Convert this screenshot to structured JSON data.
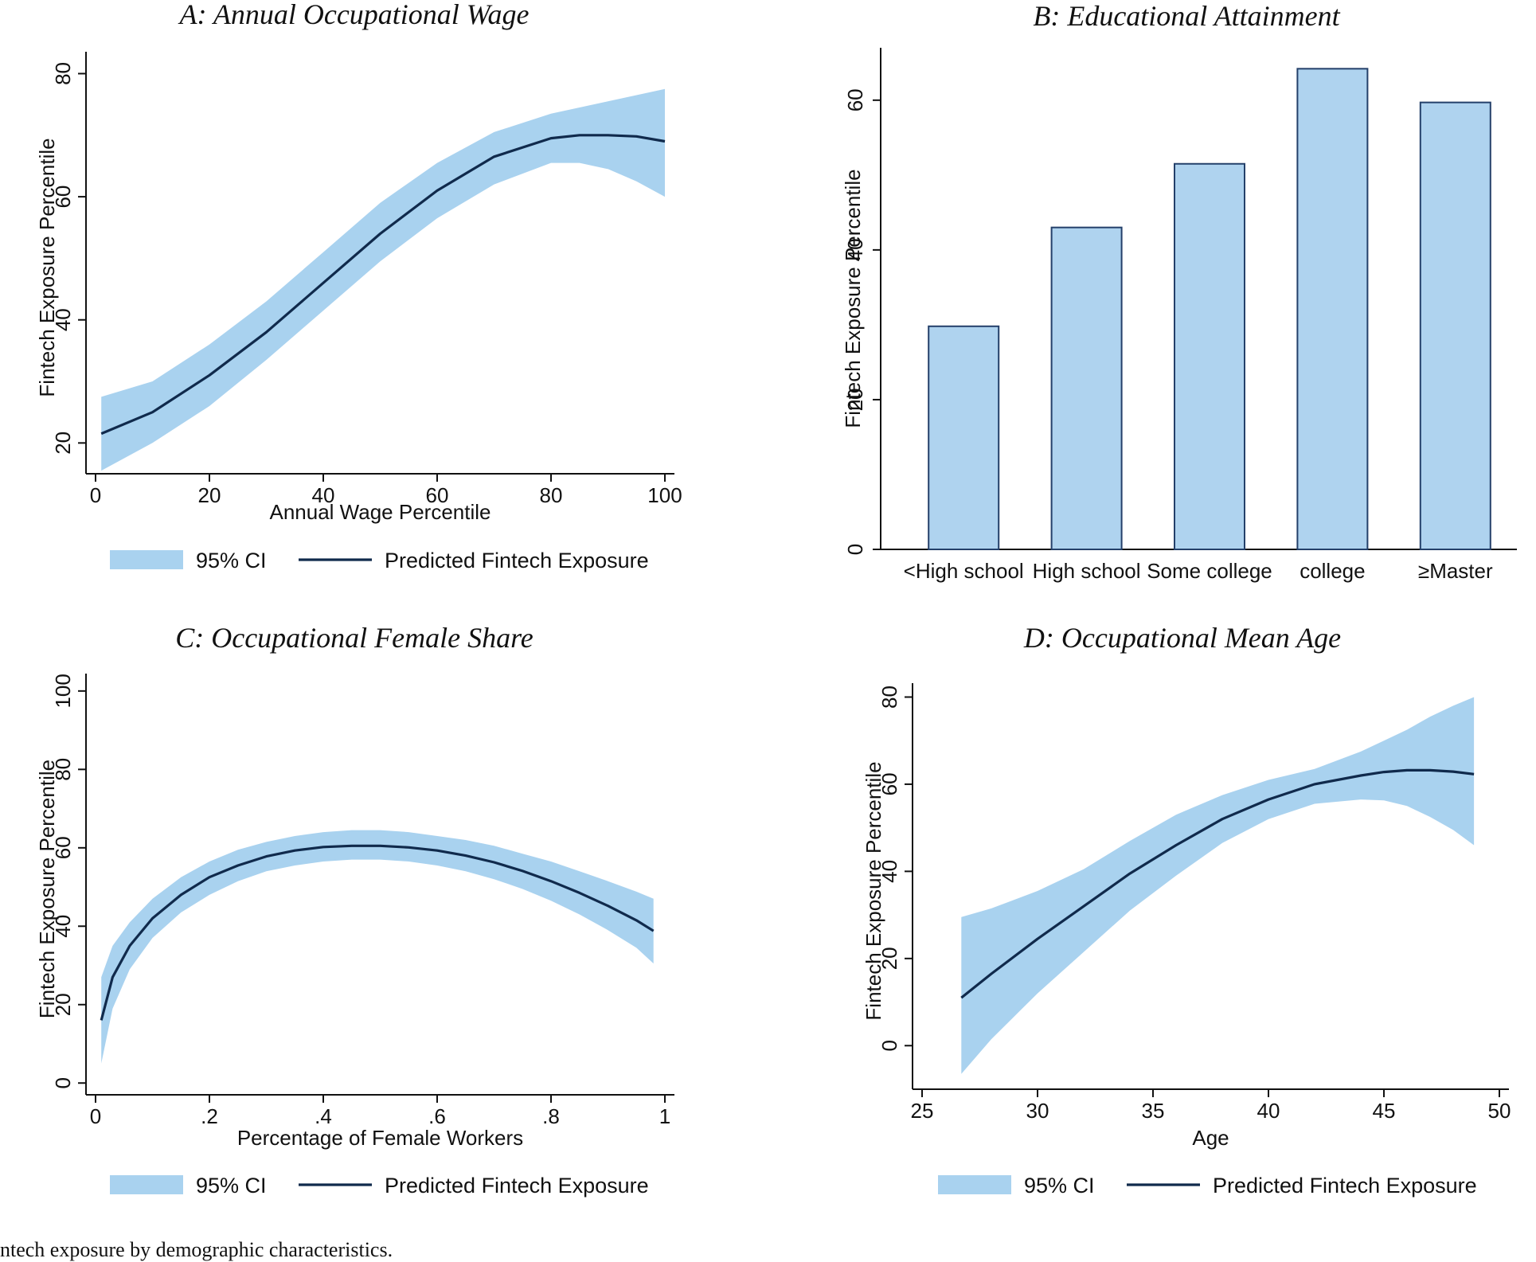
{
  "colors": {
    "ci_fill": "#A9D2EF",
    "line": "#102A4C",
    "bar_fill": "#AFD3EF",
    "bar_stroke": "#24406A",
    "axis": "#111111"
  },
  "caption": "ntech exposure by demographic characteristics.",
  "chart_data": [
    {
      "type": "line",
      "title": "A: Annual Occupational Wage",
      "xlabel": "Annual Wage Percentile",
      "ylabel": "Fintech Exposure Percentile",
      "xlim": [
        0,
        100
      ],
      "ylim": [
        15,
        82
      ],
      "xticks": [
        0,
        20,
        40,
        60,
        80,
        100
      ],
      "yticks": [
        20,
        40,
        60,
        80
      ],
      "legend": [
        "95% CI",
        "Predicted Fintech Exposure"
      ],
      "legend_position": "bottom",
      "x": [
        1,
        10,
        20,
        30,
        40,
        50,
        60,
        70,
        80,
        85,
        90,
        95,
        100
      ],
      "series": [
        {
          "name": "Predicted Fintech Exposure",
          "values": [
            21.5,
            25,
            31,
            38,
            46,
            54,
            61,
            66.5,
            69.5,
            70,
            70,
            69.8,
            69
          ]
        }
      ],
      "ci_lower": [
        15.5,
        20,
        26,
        33.5,
        41.5,
        49.5,
        56.5,
        62,
        65.5,
        65.5,
        64.5,
        62.5,
        60
      ],
      "ci_upper": [
        27.5,
        30,
        36,
        43,
        51,
        59,
        65.5,
        70.5,
        73.5,
        74.5,
        75.5,
        76.5,
        77.5
      ]
    },
    {
      "type": "bar",
      "title": "B: Educational Attainment",
      "ylabel": "Fintech Exposure Percentile",
      "ylim": [
        0,
        67
      ],
      "yticks": [
        0,
        20,
        40,
        60
      ],
      "categories": [
        "<High school",
        "High school",
        "Some college",
        "college",
        "≥Master"
      ],
      "values": [
        29.8,
        43,
        51.5,
        64.2,
        59.7
      ]
    },
    {
      "type": "line",
      "title": "C: Occupational Female Share",
      "xlabel": "Percentage of Female Workers",
      "ylabel": "Fintech Exposure Percentile",
      "xlim": [
        0,
        1
      ],
      "ylim": [
        -3,
        102
      ],
      "xticks": [
        0,
        0.2,
        0.4,
        0.6,
        0.8,
        1
      ],
      "xtick_labels": [
        "0",
        ".2",
        ".4",
        ".6",
        ".8",
        "1"
      ],
      "yticks": [
        0,
        20,
        40,
        60,
        80,
        100
      ],
      "legend": [
        "95% CI",
        "Predicted Fintech Exposure"
      ],
      "legend_position": "bottom",
      "x": [
        0.01,
        0.03,
        0.06,
        0.1,
        0.15,
        0.2,
        0.25,
        0.3,
        0.35,
        0.4,
        0.45,
        0.5,
        0.55,
        0.6,
        0.65,
        0.7,
        0.75,
        0.8,
        0.85,
        0.9,
        0.95,
        0.98
      ],
      "series": [
        {
          "name": "Predicted Fintech Exposure",
          "values": [
            16,
            27,
            35,
            42,
            48,
            52.5,
            55.5,
            57.8,
            59.3,
            60.2,
            60.5,
            60.5,
            60.1,
            59.3,
            58,
            56.3,
            54.1,
            51.5,
            48.5,
            45.2,
            41.5,
            38.8
          ]
        }
      ],
      "ci_lower": [
        5,
        19,
        29,
        37,
        43.5,
        48,
        51.5,
        54,
        55.5,
        56.5,
        57,
        57,
        56.5,
        55.5,
        54,
        52,
        49.5,
        46.5,
        43,
        39,
        34.5,
        30.5
      ],
      "ci_upper": [
        27,
        35,
        41,
        47,
        52.5,
        56.5,
        59.5,
        61.5,
        63,
        64,
        64.5,
        64.5,
        64,
        63,
        62,
        60.5,
        58.5,
        56.5,
        54,
        51.5,
        48.8,
        47
      ]
    },
    {
      "type": "line",
      "title": "D: Occupational Mean Age",
      "xlabel": "Age",
      "ylabel": "Fintech Exposure Percentile",
      "xlim": [
        25,
        50
      ],
      "ylim": [
        -10,
        81
      ],
      "xticks": [
        25,
        30,
        35,
        40,
        45,
        50
      ],
      "yticks": [
        0,
        20,
        40,
        60,
        80
      ],
      "legend": [
        "95% CI",
        "Predicted Fintech Exposure"
      ],
      "legend_position": "bottom",
      "x": [
        26.7,
        28,
        30,
        32,
        34,
        36,
        38,
        40,
        42,
        44,
        45,
        46,
        47,
        48,
        48.9
      ],
      "series": [
        {
          "name": "Predicted Fintech Exposure",
          "values": [
            11,
            16.5,
            24.5,
            32,
            39.5,
            46,
            52,
            56.5,
            60,
            62,
            62.8,
            63.2,
            63.2,
            62.9,
            62.3
          ]
        }
      ],
      "ci_lower": [
        -6.5,
        1.5,
        12,
        21.5,
        31,
        39,
        46.5,
        52,
        55.5,
        56.5,
        56.3,
        55,
        52.5,
        49.5,
        46
      ],
      "ci_upper": [
        29.5,
        31.5,
        35.5,
        40.5,
        47,
        53,
        57.5,
        61,
        63.5,
        67.5,
        70,
        72.5,
        75.5,
        78,
        80
      ]
    }
  ]
}
